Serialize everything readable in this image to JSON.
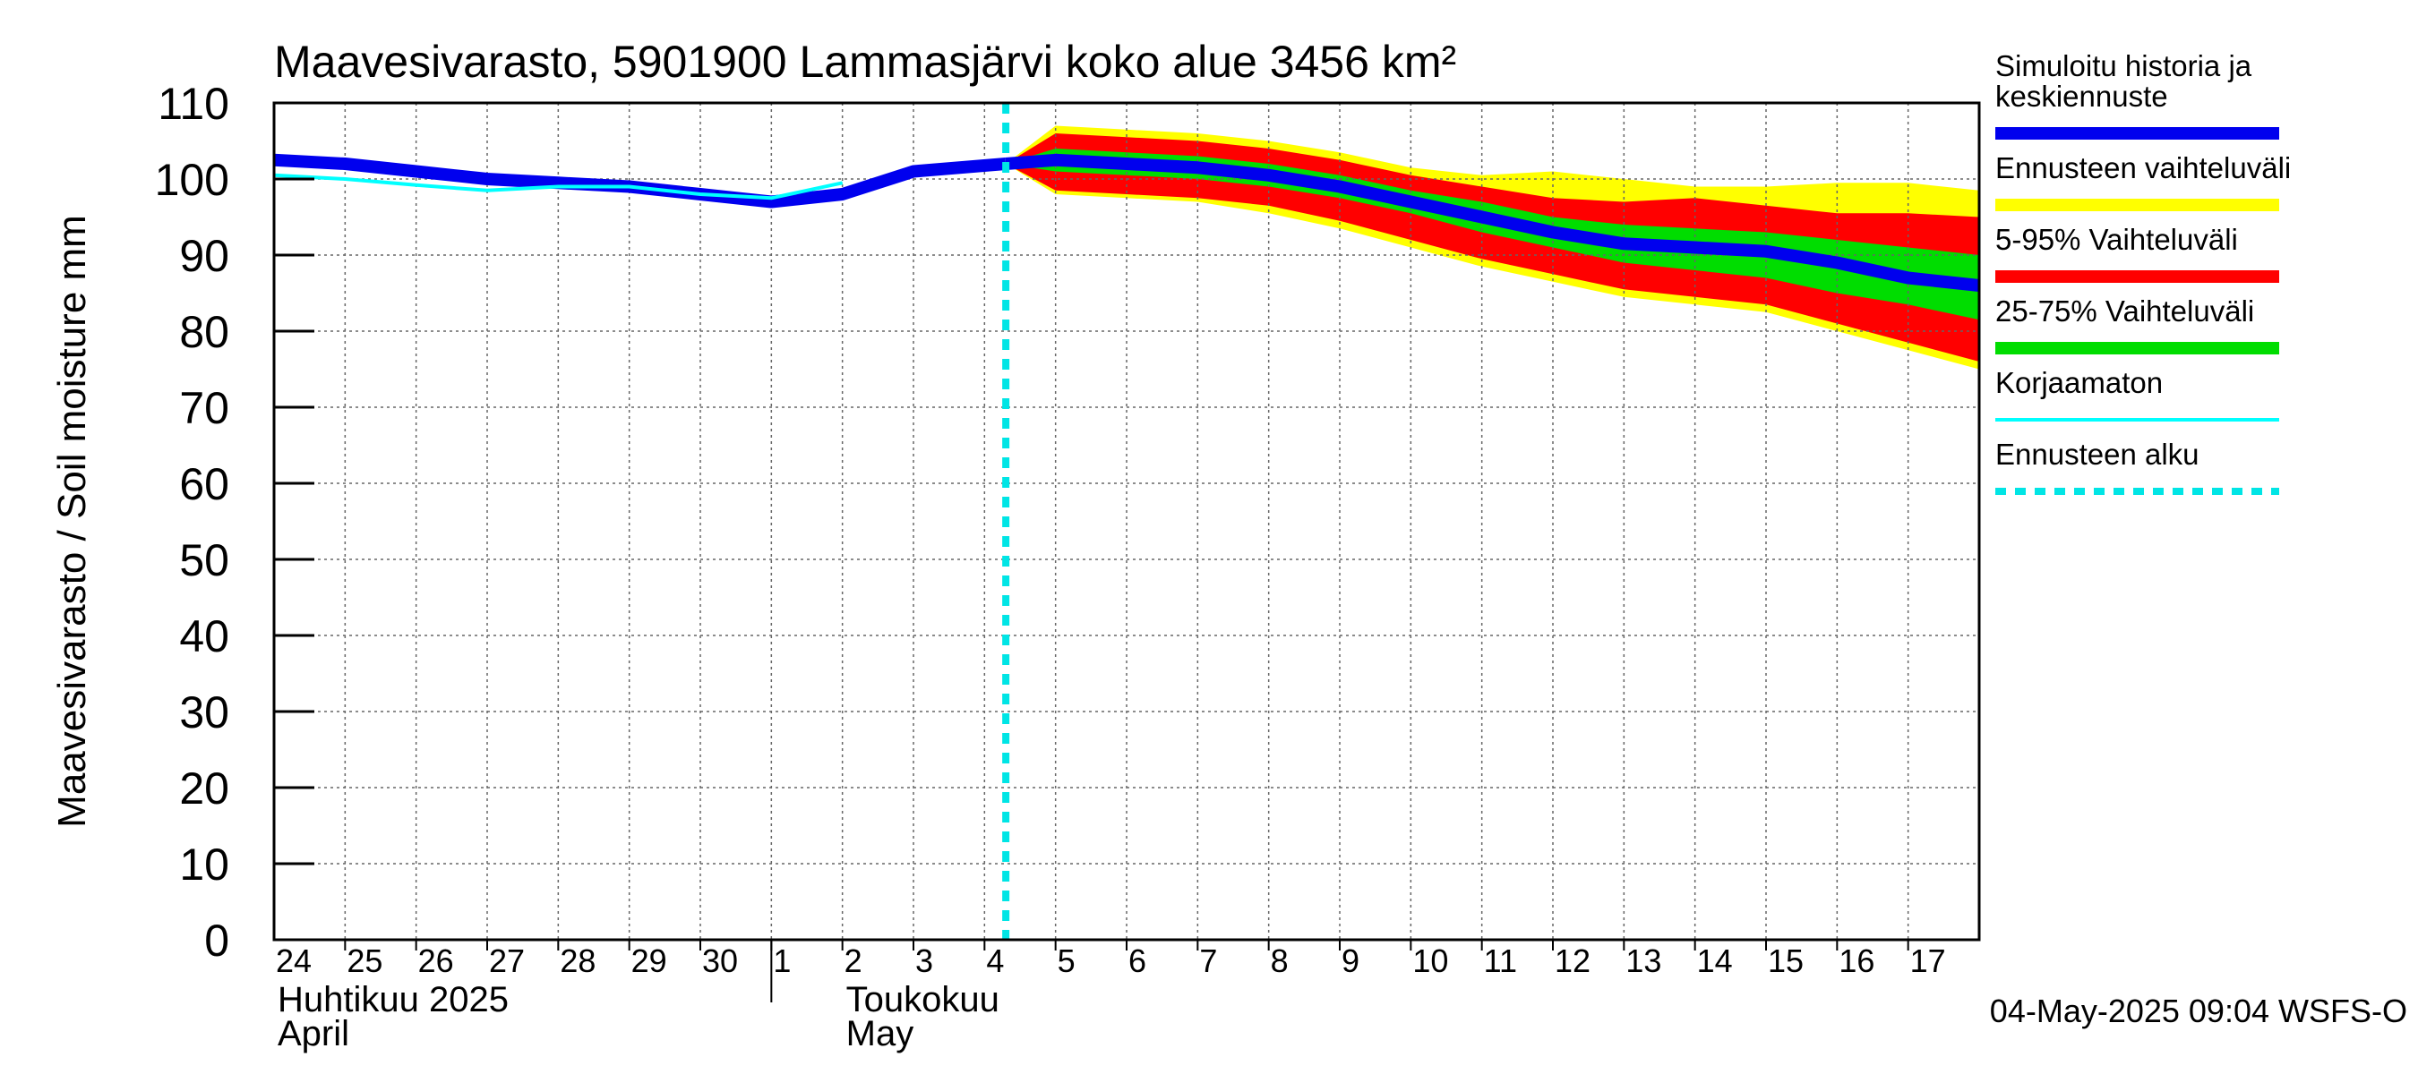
{
  "chart_data": {
    "type": "area",
    "title": "Maavesivarasto, 5901900 Lammasjärvi koko alue 3456 km²",
    "ylabel": "Maavesivarasto / Soil moisture   mm",
    "ylim": [
      0,
      110
    ],
    "yticks": [
      0,
      10,
      20,
      30,
      40,
      50,
      60,
      70,
      80,
      90,
      100,
      110
    ],
    "grid": true,
    "x_start_day": 0,
    "x_end_day": 24,
    "x_tick_labels": [
      "24",
      "25",
      "26",
      "27",
      "28",
      "29",
      "30",
      "1",
      "2",
      "3",
      "4",
      "5",
      "6",
      "7",
      "8",
      "9",
      "10",
      "11",
      "12",
      "13",
      "14",
      "15",
      "16",
      "17"
    ],
    "month_labels": [
      {
        "day": 0,
        "line1": "Huhtikuu  2025",
        "line2": "April"
      },
      {
        "day": 8,
        "line1": "Toukokuu",
        "line2": "May"
      }
    ],
    "month_separator_day": 7,
    "forecast_start_day": 10.3,
    "legend": [
      {
        "label": "Simuloitu historia ja",
        "label2": "keskiennuste",
        "color": "#0000ee",
        "style": "thick"
      },
      {
        "label": "Ennusteen vaihteluväli",
        "color": "#ffff00",
        "style": "band"
      },
      {
        "label": "5-95% Vaihteluväli",
        "color": "#ff0000",
        "style": "band"
      },
      {
        "label": "25-75% Vaihteluväli",
        "color": "#00dd00",
        "style": "band"
      },
      {
        "label": "Korjaamaton",
        "color": "#00ffff",
        "style": "thin"
      },
      {
        "label": "Ennusteen alku",
        "color": "#00e5e5",
        "style": "dashed"
      }
    ],
    "series": {
      "simulated_history": {
        "x": [
          0,
          1,
          2,
          3,
          4,
          5,
          6,
          7,
          8,
          9,
          10.3
        ],
        "y": [
          102.5,
          102,
          101,
          100,
          99.5,
          99,
          98,
          97,
          98,
          101,
          102
        ]
      },
      "uncorrected": {
        "x": [
          0,
          1,
          2,
          3,
          4,
          5,
          6,
          7,
          8
        ],
        "y": [
          100.5,
          100,
          99.2,
          98.5,
          99,
          99,
          98,
          97.5,
          99.5
        ]
      },
      "forecast_days": [
        10.3,
        11,
        12,
        13,
        14,
        15,
        16,
        17,
        18,
        19,
        20,
        21,
        22,
        23,
        24
      ],
      "forecast_median": [
        102,
        102.5,
        102,
        101.5,
        100.5,
        99,
        97,
        95,
        93,
        91.5,
        91,
        90.5,
        89,
        87,
        86
      ],
      "range_min": [
        102,
        98,
        97.5,
        97,
        95.5,
        93.5,
        91,
        88.5,
        86.5,
        84.5,
        83.5,
        82.5,
        80,
        77.5,
        75
      ],
      "range_max": [
        102,
        107,
        106.5,
        106,
        105,
        103.5,
        101.5,
        100.5,
        101,
        100,
        99,
        99,
        99.5,
        99.5,
        98.5
      ],
      "p5": [
        102,
        98.5,
        98,
        97.5,
        96.5,
        94.5,
        92,
        89.5,
        87.5,
        85.5,
        84.5,
        83.5,
        81,
        78.5,
        76
      ],
      "p95": [
        102,
        106,
        105.5,
        105,
        104,
        102.5,
        100.5,
        99,
        97.5,
        97,
        97.5,
        96.5,
        95.5,
        95.5,
        95
      ],
      "p25": [
        102,
        101,
        100.5,
        100,
        99,
        97.5,
        95.5,
        93,
        91,
        89,
        88,
        87,
        85,
        83.5,
        81.5
      ],
      "p75": [
        102,
        104,
        103.5,
        103,
        102,
        100.5,
        98.5,
        97,
        95,
        94,
        93.5,
        93,
        92,
        91,
        90
      ]
    },
    "timestamp": "04-May-2025 09:04 WSFS-O"
  }
}
